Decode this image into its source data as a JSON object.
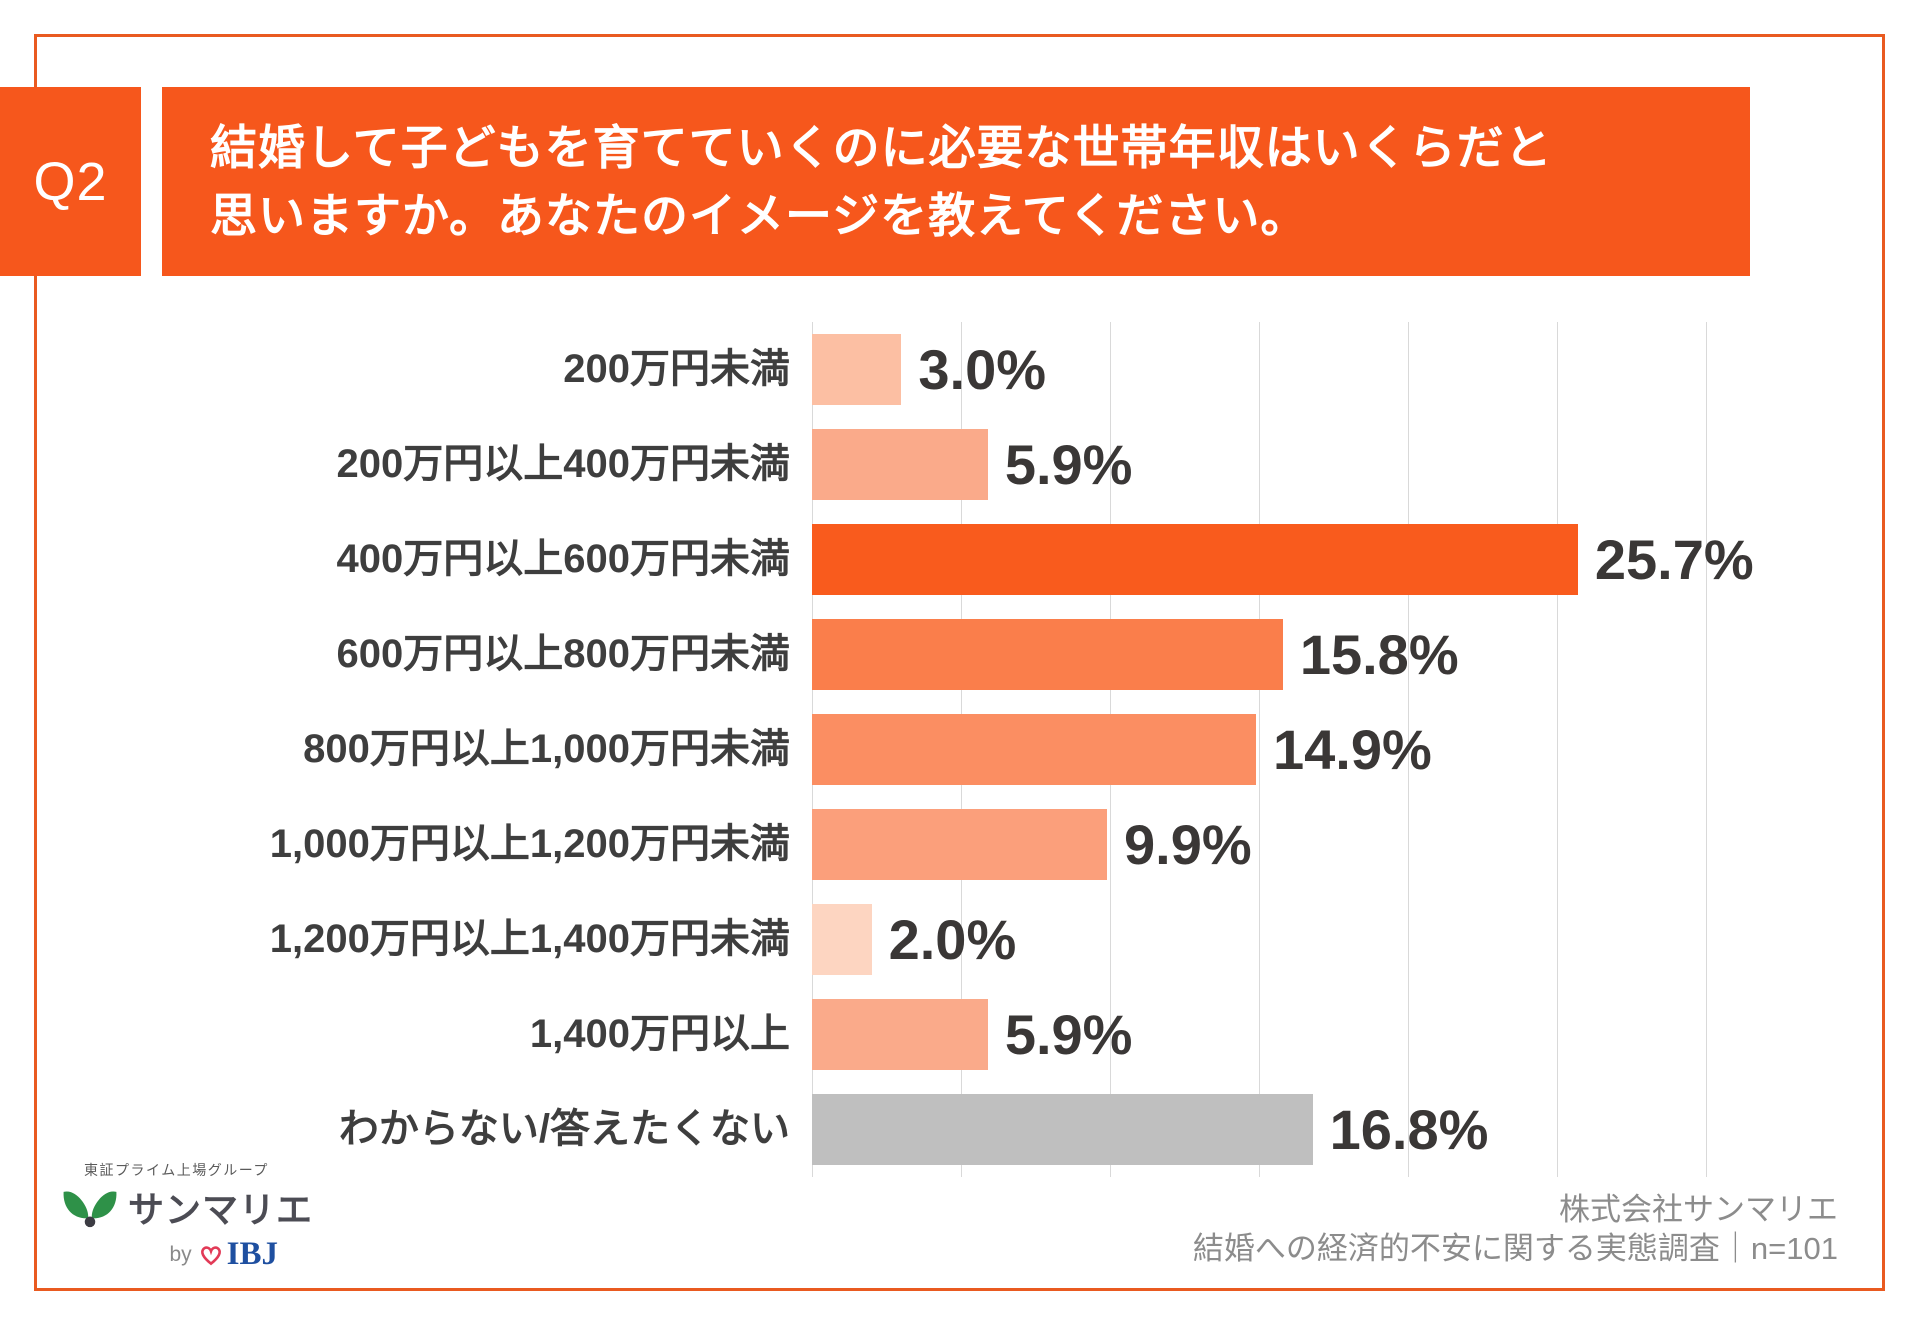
{
  "header": {
    "question_number": "Q2",
    "title_line1": "結婚して子どもを育てていくのに必要な世帯年収はいくらだと",
    "title_line2": "思いますか。あなたのイメージを教えてください。"
  },
  "chart_data": {
    "type": "bar",
    "orientation": "horizontal",
    "title": "",
    "xlabel": "",
    "ylabel": "",
    "xlim": [
      0,
      30
    ],
    "gridline_interval_pct": 5,
    "grid": true,
    "legend": "none",
    "categories": [
      "200万円未満",
      "200万円以上400万円未満",
      "400万円以上600万円未満",
      "600万円以上800万円未満",
      "800万円以上1,000万円未満",
      "1,000万円以上1,200万円未満",
      "1,200万円以上1,400万円未満",
      "1,400万円以上",
      "わからない/答えたくない"
    ],
    "values": [
      3.0,
      5.9,
      25.7,
      15.8,
      14.9,
      9.9,
      2.0,
      5.9,
      16.8
    ],
    "value_labels": [
      "3.0%",
      "5.9%",
      "25.7%",
      "15.8%",
      "14.9%",
      "9.9%",
      "2.0%",
      "5.9%",
      "16.8%"
    ],
    "bar_colors": [
      "#FCBFA3",
      "#FAAA8A",
      "#F95B1D",
      "#FA7E4B",
      "#FB8E62",
      "#FB9F7B",
      "#FDD5C1",
      "#FAAA8A",
      "#BFBFBF"
    ]
  },
  "logo": {
    "group_line": "東証プライム上場グループ",
    "brand": "サンマリエ",
    "by_label": "by",
    "company": "IBJ"
  },
  "footer": {
    "line1": "株式会社サンマリエ",
    "line2": "結婚への経済的不安に関する実態調査｜n=101"
  },
  "colors": {
    "accent_orange": "#F6571C",
    "frame_orange": "#E95A20",
    "highlight_bar": "#F95B1D",
    "gray_bar": "#BFBFBF",
    "gridline": "#D9D9D9",
    "category_label": "#3E3E3E",
    "value_label": "#3A3736",
    "footer_text": "#8C8C8C",
    "leaf_green": "#2E9148",
    "ibj_blue": "#1E4FA0",
    "heart_red": "#E23A57"
  }
}
